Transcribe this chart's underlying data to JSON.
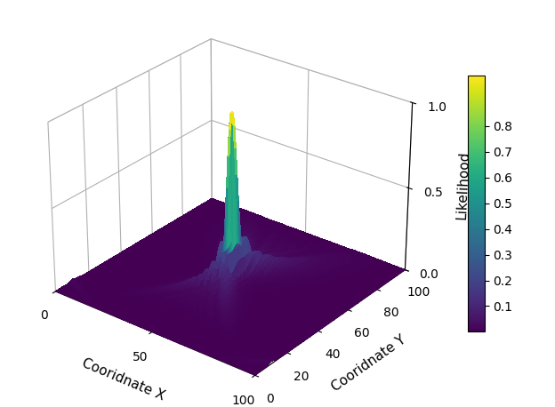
{
  "title": "",
  "xlabel": "Cooridnate X",
  "ylabel": "Cooridnate Y",
  "zlabel": "Likelihood",
  "xlim": [
    0,
    100
  ],
  "ylim": [
    0,
    100
  ],
  "zlim": [
    0,
    1
  ],
  "xticks": [
    0,
    50,
    100
  ],
  "yticks": [
    0,
    20,
    40,
    60,
    80,
    100
  ],
  "zticks": [
    0,
    0.5,
    1
  ],
  "colorbar_ticks": [
    0.1,
    0.2,
    0.3,
    0.4,
    0.5,
    0.6,
    0.7,
    0.8
  ],
  "peak_x": 50,
  "peak_y": 50,
  "grid_points": 120,
  "background_color": "#ffffff",
  "elev": 28,
  "azim": -52
}
